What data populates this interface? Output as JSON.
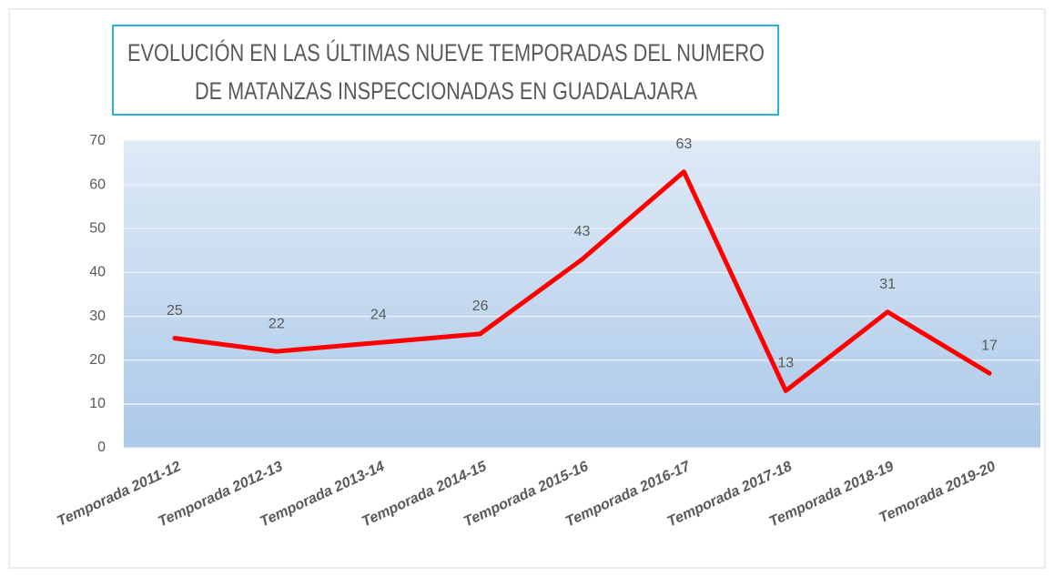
{
  "chart_data": {
    "type": "line",
    "title": [
      "EVOLUCIÓN  EN LAS ÚLTIMAS NUEVE TEMPORADAS DEL NUMERO",
      "DE MATANZAS INSPECCIONADAS  EN GUADALAJARA"
    ],
    "categories": [
      "Temporada 2011-12",
      "Temporada 2012-13",
      "Temporada 2013-14",
      "Temporada 2014-15",
      "Temporada 2015-16",
      "Temporada 2016-17",
      "Temporada 2017-18",
      "Temporada 2018-19",
      "Temorada 2019-20"
    ],
    "values": [
      25,
      22,
      24,
      26,
      43,
      63,
      13,
      31,
      17
    ],
    "color": "#ff0000",
    "ylim": [
      0,
      70
    ],
    "yticks": [
      0,
      10,
      20,
      30,
      40,
      50,
      60,
      70
    ],
    "grid": true
  }
}
